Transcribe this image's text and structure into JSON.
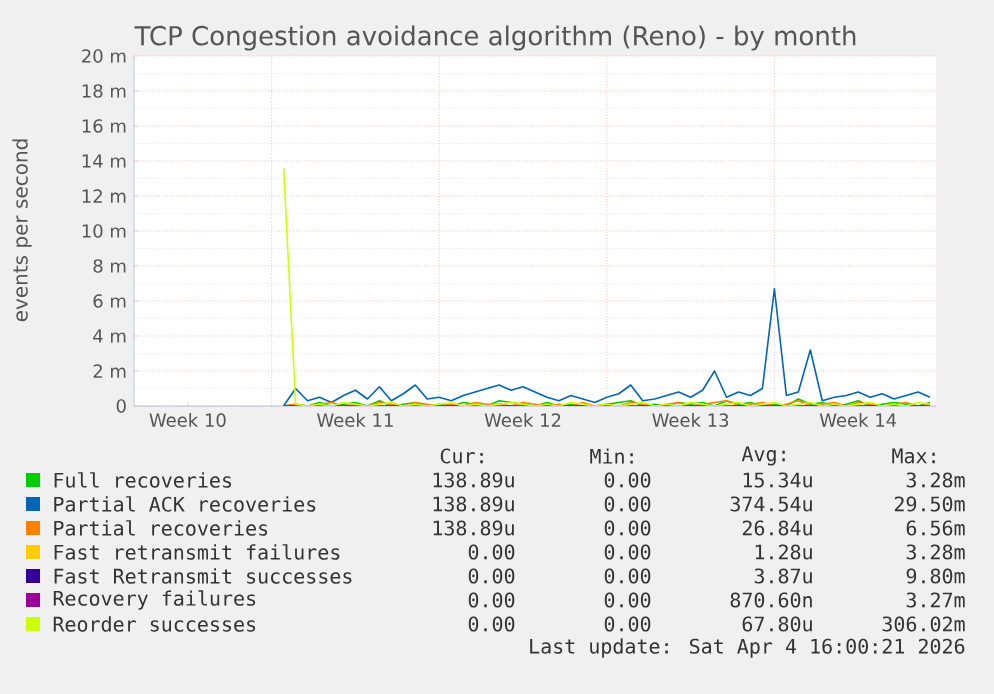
{
  "chart_data": {
    "type": "line",
    "title": "TCP Congestion avoidance algorithm (Reno) - by month",
    "ylabel": "events per second",
    "categories": [
      null,
      null,
      null,
      null,
      "Week 10",
      null,
      null,
      null,
      null,
      null,
      null,
      null,
      null,
      null,
      null,
      null,
      null,
      null,
      "Week 11",
      null,
      null,
      null,
      null,
      null,
      null,
      null,
      null,
      null,
      null,
      null,
      null,
      null,
      "Week 12",
      null,
      null,
      null,
      null,
      null,
      null,
      null,
      null,
      null,
      null,
      null,
      null,
      null,
      "Week 13",
      null,
      null,
      null,
      null,
      null,
      null,
      null,
      null,
      null,
      null,
      null,
      null,
      null,
      "Week 14",
      null,
      null,
      null,
      null,
      null,
      null
    ],
    "ylim": [
      0,
      20
    ],
    "yticks": [
      0,
      {
        "value": 2,
        "label": "2 m"
      },
      {
        "value": 4,
        "label": "4 m"
      },
      {
        "value": 6,
        "label": "6 m"
      },
      {
        "value": 8,
        "label": "8 m"
      },
      {
        "value": 10,
        "label": "10 m"
      },
      {
        "value": 12,
        "label": "12 m"
      },
      {
        "value": 14,
        "label": "14 m"
      },
      {
        "value": 16,
        "label": "16 m"
      },
      {
        "value": 18,
        "label": "18 m"
      },
      {
        "value": 20,
        "label": "20 m"
      }
    ],
    "grid": true,
    "legend": "bottom",
    "series": [
      {
        "name": "Full recoveries",
        "color": "#00cc00",
        "values": [
          null,
          null,
          null,
          null,
          null,
          null,
          null,
          null,
          null,
          null,
          null,
          null,
          0,
          0.1,
          0,
          0.2,
          0,
          0.1,
          0.2,
          0,
          0.3,
          0,
          0.1,
          0.2,
          0,
          0.1,
          0,
          0.2,
          0.1,
          0,
          0.3,
          0.2,
          0.1,
          0,
          0.2,
          0,
          0.1,
          0,
          0,
          0.1,
          0.2,
          0.3,
          0,
          0.1,
          0,
          0.2,
          0.1,
          0.2,
          0,
          0.3,
          0.1,
          0.2,
          0,
          0.1,
          0,
          0.4,
          0.1,
          0.2,
          0,
          0.1,
          0.3,
          0,
          0.1,
          0.2,
          0.1,
          0,
          0.2
        ]
      },
      {
        "name": "Partial ACK recoveries",
        "color": "#0066b3",
        "values": [
          null,
          null,
          null,
          null,
          null,
          null,
          null,
          null,
          null,
          null,
          null,
          null,
          0,
          1.0,
          0.3,
          0.5,
          0.2,
          0.6,
          0.9,
          0.4,
          1.1,
          0.3,
          0.7,
          1.2,
          0.4,
          0.5,
          0.3,
          0.6,
          0.8,
          1.0,
          1.2,
          0.9,
          1.1,
          0.8,
          0.5,
          0.3,
          0.6,
          0.4,
          0.2,
          0.5,
          0.7,
          1.2,
          0.3,
          0.4,
          0.6,
          0.8,
          0.5,
          0.9,
          2.0,
          0.5,
          0.8,
          0.6,
          1.0,
          6.7,
          0.6,
          0.8,
          3.2,
          0.3,
          0.5,
          0.6,
          0.8,
          0.5,
          0.7,
          0.4,
          0.6,
          0.8,
          0.5
        ]
      },
      {
        "name": "Partial recoveries",
        "color": "#ff8000",
        "values": [
          null,
          null,
          null,
          null,
          null,
          null,
          null,
          null,
          null,
          null,
          null,
          null,
          0,
          0.1,
          0,
          0.1,
          0.2,
          0,
          0.1,
          0,
          0.2,
          0.1,
          0,
          0.2,
          0.1,
          0,
          0.1,
          0,
          0.2,
          0.1,
          0.1,
          0,
          0.2,
          0.1,
          0,
          0.1,
          0,
          0.2,
          0,
          0.1,
          0,
          0.2,
          0.1,
          0,
          0.1,
          0.2,
          0,
          0.1,
          0.2,
          0.3,
          0,
          0.1,
          0.2,
          0,
          0.1,
          0.3,
          0,
          0.1,
          0.2,
          0,
          0.2,
          0.1,
          0,
          0.1,
          0.2,
          0,
          0.1
        ]
      },
      {
        "name": "Fast retransmit failures",
        "color": "#ffcc00",
        "values": [
          null,
          null,
          null,
          null,
          null,
          null,
          null,
          null,
          null,
          null,
          null,
          null,
          null,
          null,
          null,
          null,
          null,
          null,
          null,
          null,
          null,
          null,
          null,
          null,
          null,
          null,
          null,
          null,
          null,
          null,
          null,
          null,
          null,
          null,
          null,
          null,
          null,
          null,
          null,
          null,
          null,
          null,
          null,
          null,
          null,
          null,
          null,
          null,
          null,
          null,
          null,
          null,
          null,
          null,
          null,
          null,
          null,
          null,
          null,
          null,
          null,
          null,
          null,
          null,
          null,
          null,
          null
        ]
      },
      {
        "name": "Fast Retransmit successes",
        "color": "#330099",
        "values": [
          null,
          null,
          null,
          null,
          null,
          null,
          null,
          null,
          null,
          null,
          null,
          null,
          null,
          null,
          null,
          null,
          null,
          null,
          null,
          null,
          null,
          null,
          null,
          null,
          null,
          null,
          null,
          null,
          null,
          null,
          null,
          null,
          null,
          null,
          null,
          null,
          null,
          null,
          null,
          null,
          null,
          null,
          null,
          null,
          null,
          null,
          null,
          null,
          null,
          null,
          null,
          null,
          null,
          null,
          null,
          null,
          null,
          null,
          null,
          null,
          null,
          null,
          null,
          null,
          null,
          null,
          null
        ]
      },
      {
        "name": "Recovery failures",
        "color": "#990099",
        "values": [
          null,
          null,
          null,
          null,
          null,
          null,
          null,
          null,
          null,
          null,
          null,
          null,
          0,
          0,
          0,
          0,
          0,
          0,
          0,
          0,
          0,
          0,
          0,
          0,
          0,
          0,
          0,
          0,
          0,
          0,
          0,
          0,
          0,
          0,
          0,
          0,
          0,
          0,
          0,
          0,
          0,
          0,
          0,
          0,
          0,
          0,
          0,
          0,
          0,
          0,
          0,
          0,
          0,
          0,
          0,
          0,
          0,
          0,
          0,
          0,
          0,
          0,
          0,
          0,
          0,
          0,
          0
        ]
      },
      {
        "name": "Reorder successes",
        "color": "#ccff00",
        "values": [
          null,
          null,
          null,
          null,
          null,
          null,
          null,
          null,
          null,
          null,
          null,
          null,
          13.6,
          0.1,
          0,
          0.1,
          0,
          0.2,
          0.1,
          0,
          0.1,
          0.2,
          0,
          0.1,
          0,
          0.1,
          0.2,
          0,
          0.1,
          0,
          0.1,
          0.2,
          0.1,
          0,
          0.1,
          0,
          0.2,
          0.1,
          0,
          0.1,
          0,
          0.1,
          0.2,
          0,
          0.1,
          0,
          0.2,
          0.1,
          0,
          0.1,
          0.2,
          0,
          0.1,
          0.2,
          0,
          0.1,
          0.2,
          0,
          0.1,
          0,
          0.1,
          0.2,
          0,
          0.1,
          0,
          0.2,
          0.1
        ]
      }
    ],
    "annotations": [
      "Cur:",
      "Min:",
      "Avg:",
      "Max:",
      "138.89u",
      "0.00",
      "15.34u",
      "3.28m",
      "138.89u",
      "0.00",
      "374.54u",
      "29.50m",
      "138.89u",
      "0.00",
      "26.84u",
      "6.56m",
      "0.00",
      "0.00",
      "1.28u",
      "3.28m",
      "0.00",
      "0.00",
      "3.87u",
      "9.80m",
      "0.00",
      "0.00",
      "870.60n",
      "3.27m",
      "0.00",
      "0.00",
      "67.80u",
      "306.02m",
      "Last update: Sat Apr 4 16:00:21 2026"
    ]
  }
}
